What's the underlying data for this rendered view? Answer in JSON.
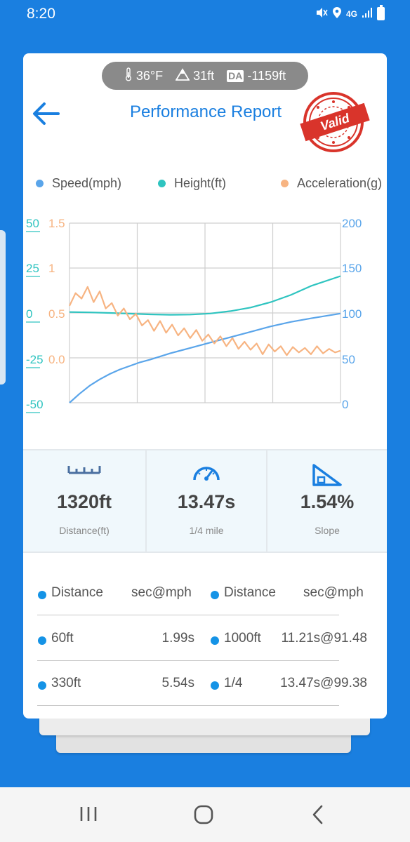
{
  "status_bar": {
    "time": "8:20",
    "network": "4G",
    "icons": [
      "mute-icon",
      "location-icon",
      "network-icon",
      "signal-icon",
      "battery-icon"
    ]
  },
  "weather": {
    "temperature": "36°F",
    "altitude": "31ft",
    "da_label": "DA",
    "density_altitude": "-1159ft"
  },
  "header": {
    "title": "Performance Report",
    "stamp_text": "Valid",
    "stamp_color": "#d9342b"
  },
  "legend": [
    {
      "label": "Speed(mph)",
      "color": "#5aa5ea"
    },
    {
      "label": "Height(ft)",
      "color": "#2fc4c0"
    },
    {
      "label": "Acceleration(g)",
      "color": "#f7b482"
    }
  ],
  "chart_data": {
    "type": "line",
    "x_range": [
      0,
      13.47
    ],
    "axes": {
      "height_left": {
        "ticks": [
          "50",
          "25",
          "0",
          "-25",
          "-50"
        ],
        "range": [
          -50,
          50
        ],
        "color": "#2fc4c0"
      },
      "accel_left": {
        "ticks": [
          "1.5",
          "1",
          "0.5",
          "0.0"
        ],
        "range": [
          -0.5,
          1.5
        ],
        "color": "#f7b482"
      },
      "speed_right": {
        "ticks": [
          "200",
          "150",
          "100",
          "50",
          "0"
        ],
        "range": [
          0,
          200
        ],
        "color": "#5aa5ea"
      }
    },
    "grid": true,
    "series": [
      {
        "name": "Speed(mph)",
        "color": "#5aa5ea",
        "axis": "speed_right",
        "x": [
          0,
          0.5,
          1,
          1.5,
          2,
          2.5,
          3,
          3.5,
          4,
          5,
          6,
          7,
          8,
          9,
          10,
          11,
          12,
          13.47
        ],
        "y": [
          0,
          10,
          19,
          26,
          32,
          37,
          41,
          45,
          48,
          55,
          61,
          67,
          73,
          79,
          85,
          90,
          94,
          99.4
        ]
      },
      {
        "name": "Height(ft)",
        "color": "#2fc4c0",
        "axis": "height_left",
        "x": [
          0,
          1,
          2,
          3,
          4,
          5,
          6,
          7,
          8,
          9,
          10,
          11,
          12,
          13.47
        ],
        "y": [
          0.5,
          0.3,
          0,
          -0.4,
          -0.8,
          -1.0,
          -0.9,
          -0.3,
          1.0,
          3.0,
          6.0,
          10.0,
          15.0,
          20.5
        ]
      },
      {
        "name": "Acceleration(g)",
        "color": "#f7b482",
        "axis": "accel_left",
        "x": [
          0,
          0.3,
          0.6,
          0.9,
          1.2,
          1.5,
          1.8,
          2.1,
          2.4,
          2.7,
          3.0,
          3.3,
          3.6,
          3.9,
          4.2,
          4.5,
          4.8,
          5.1,
          5.4,
          5.7,
          6.0,
          6.3,
          6.6,
          6.9,
          7.2,
          7.5,
          7.8,
          8.1,
          8.4,
          8.7,
          9.0,
          9.3,
          9.6,
          9.9,
          10.2,
          10.5,
          10.8,
          11.1,
          11.4,
          11.7,
          12.0,
          12.3,
          12.6,
          12.9,
          13.2,
          13.47
        ],
        "y": [
          0.58,
          0.72,
          0.66,
          0.79,
          0.62,
          0.74,
          0.55,
          0.61,
          0.47,
          0.55,
          0.43,
          0.49,
          0.36,
          0.42,
          0.3,
          0.41,
          0.28,
          0.37,
          0.25,
          0.33,
          0.22,
          0.31,
          0.19,
          0.26,
          0.16,
          0.24,
          0.13,
          0.22,
          0.1,
          0.18,
          0.09,
          0.16,
          0.04,
          0.15,
          0.07,
          0.13,
          0.03,
          0.12,
          0.06,
          0.11,
          0.04,
          0.13,
          0.05,
          0.1,
          0.06,
          0.08
        ]
      }
    ]
  },
  "stats": [
    {
      "value": "1320ft",
      "label": "Distance(ft)",
      "icon": "ruler-icon"
    },
    {
      "value": "13.47s",
      "label": "1/4 mile",
      "icon": "speedometer-icon"
    },
    {
      "value": "1.54%",
      "label": "Slope",
      "icon": "slope-icon"
    }
  ],
  "results": {
    "headers": [
      "Distance",
      "sec@mph",
      "Distance",
      "sec@mph"
    ],
    "rows": [
      [
        "60ft",
        "1.99s",
        "1000ft",
        "11.21s@91.48"
      ],
      [
        "330ft",
        "5.54s",
        "1/4",
        "13.47s@99.38"
      ]
    ]
  },
  "nav": [
    "recent-apps-icon",
    "home-icon",
    "back-nav-icon"
  ]
}
